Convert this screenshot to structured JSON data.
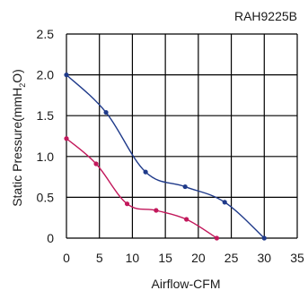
{
  "chart_data": {
    "type": "line",
    "title": "RAH9225B",
    "xlabel": "Airflow-CFM",
    "ylabel_main": "Static Pressure(mmH",
    "ylabel_sub": "2",
    "ylabel_tail": "O)",
    "xlim": [
      0,
      35
    ],
    "ylim": [
      0,
      2.5
    ],
    "grid": true,
    "x_ticks": [
      "0",
      "5",
      "10",
      "15",
      "20",
      "25",
      "30",
      "35"
    ],
    "y_ticks": [
      "0",
      "0.5",
      "1.0",
      "1.5",
      "2.0",
      "2.5"
    ],
    "x_tick_values": [
      0,
      5,
      10,
      15,
      20,
      25,
      30,
      35
    ],
    "y_tick_values": [
      0,
      0.5,
      1.0,
      1.5,
      2.0,
      2.5
    ],
    "series": [
      {
        "color": "#1f3a8a",
        "points": [
          [
            0,
            2.0
          ],
          [
            6,
            1.54
          ],
          [
            12,
            0.81
          ],
          [
            18,
            0.63
          ],
          [
            24,
            0.44
          ],
          [
            30,
            0
          ]
        ]
      },
      {
        "color": "#c2185b",
        "points": [
          [
            0,
            1.22
          ],
          [
            4.5,
            0.91
          ],
          [
            9.2,
            0.42
          ],
          [
            13.6,
            0.34
          ],
          [
            18.2,
            0.23
          ],
          [
            22.8,
            0
          ]
        ]
      }
    ]
  }
}
